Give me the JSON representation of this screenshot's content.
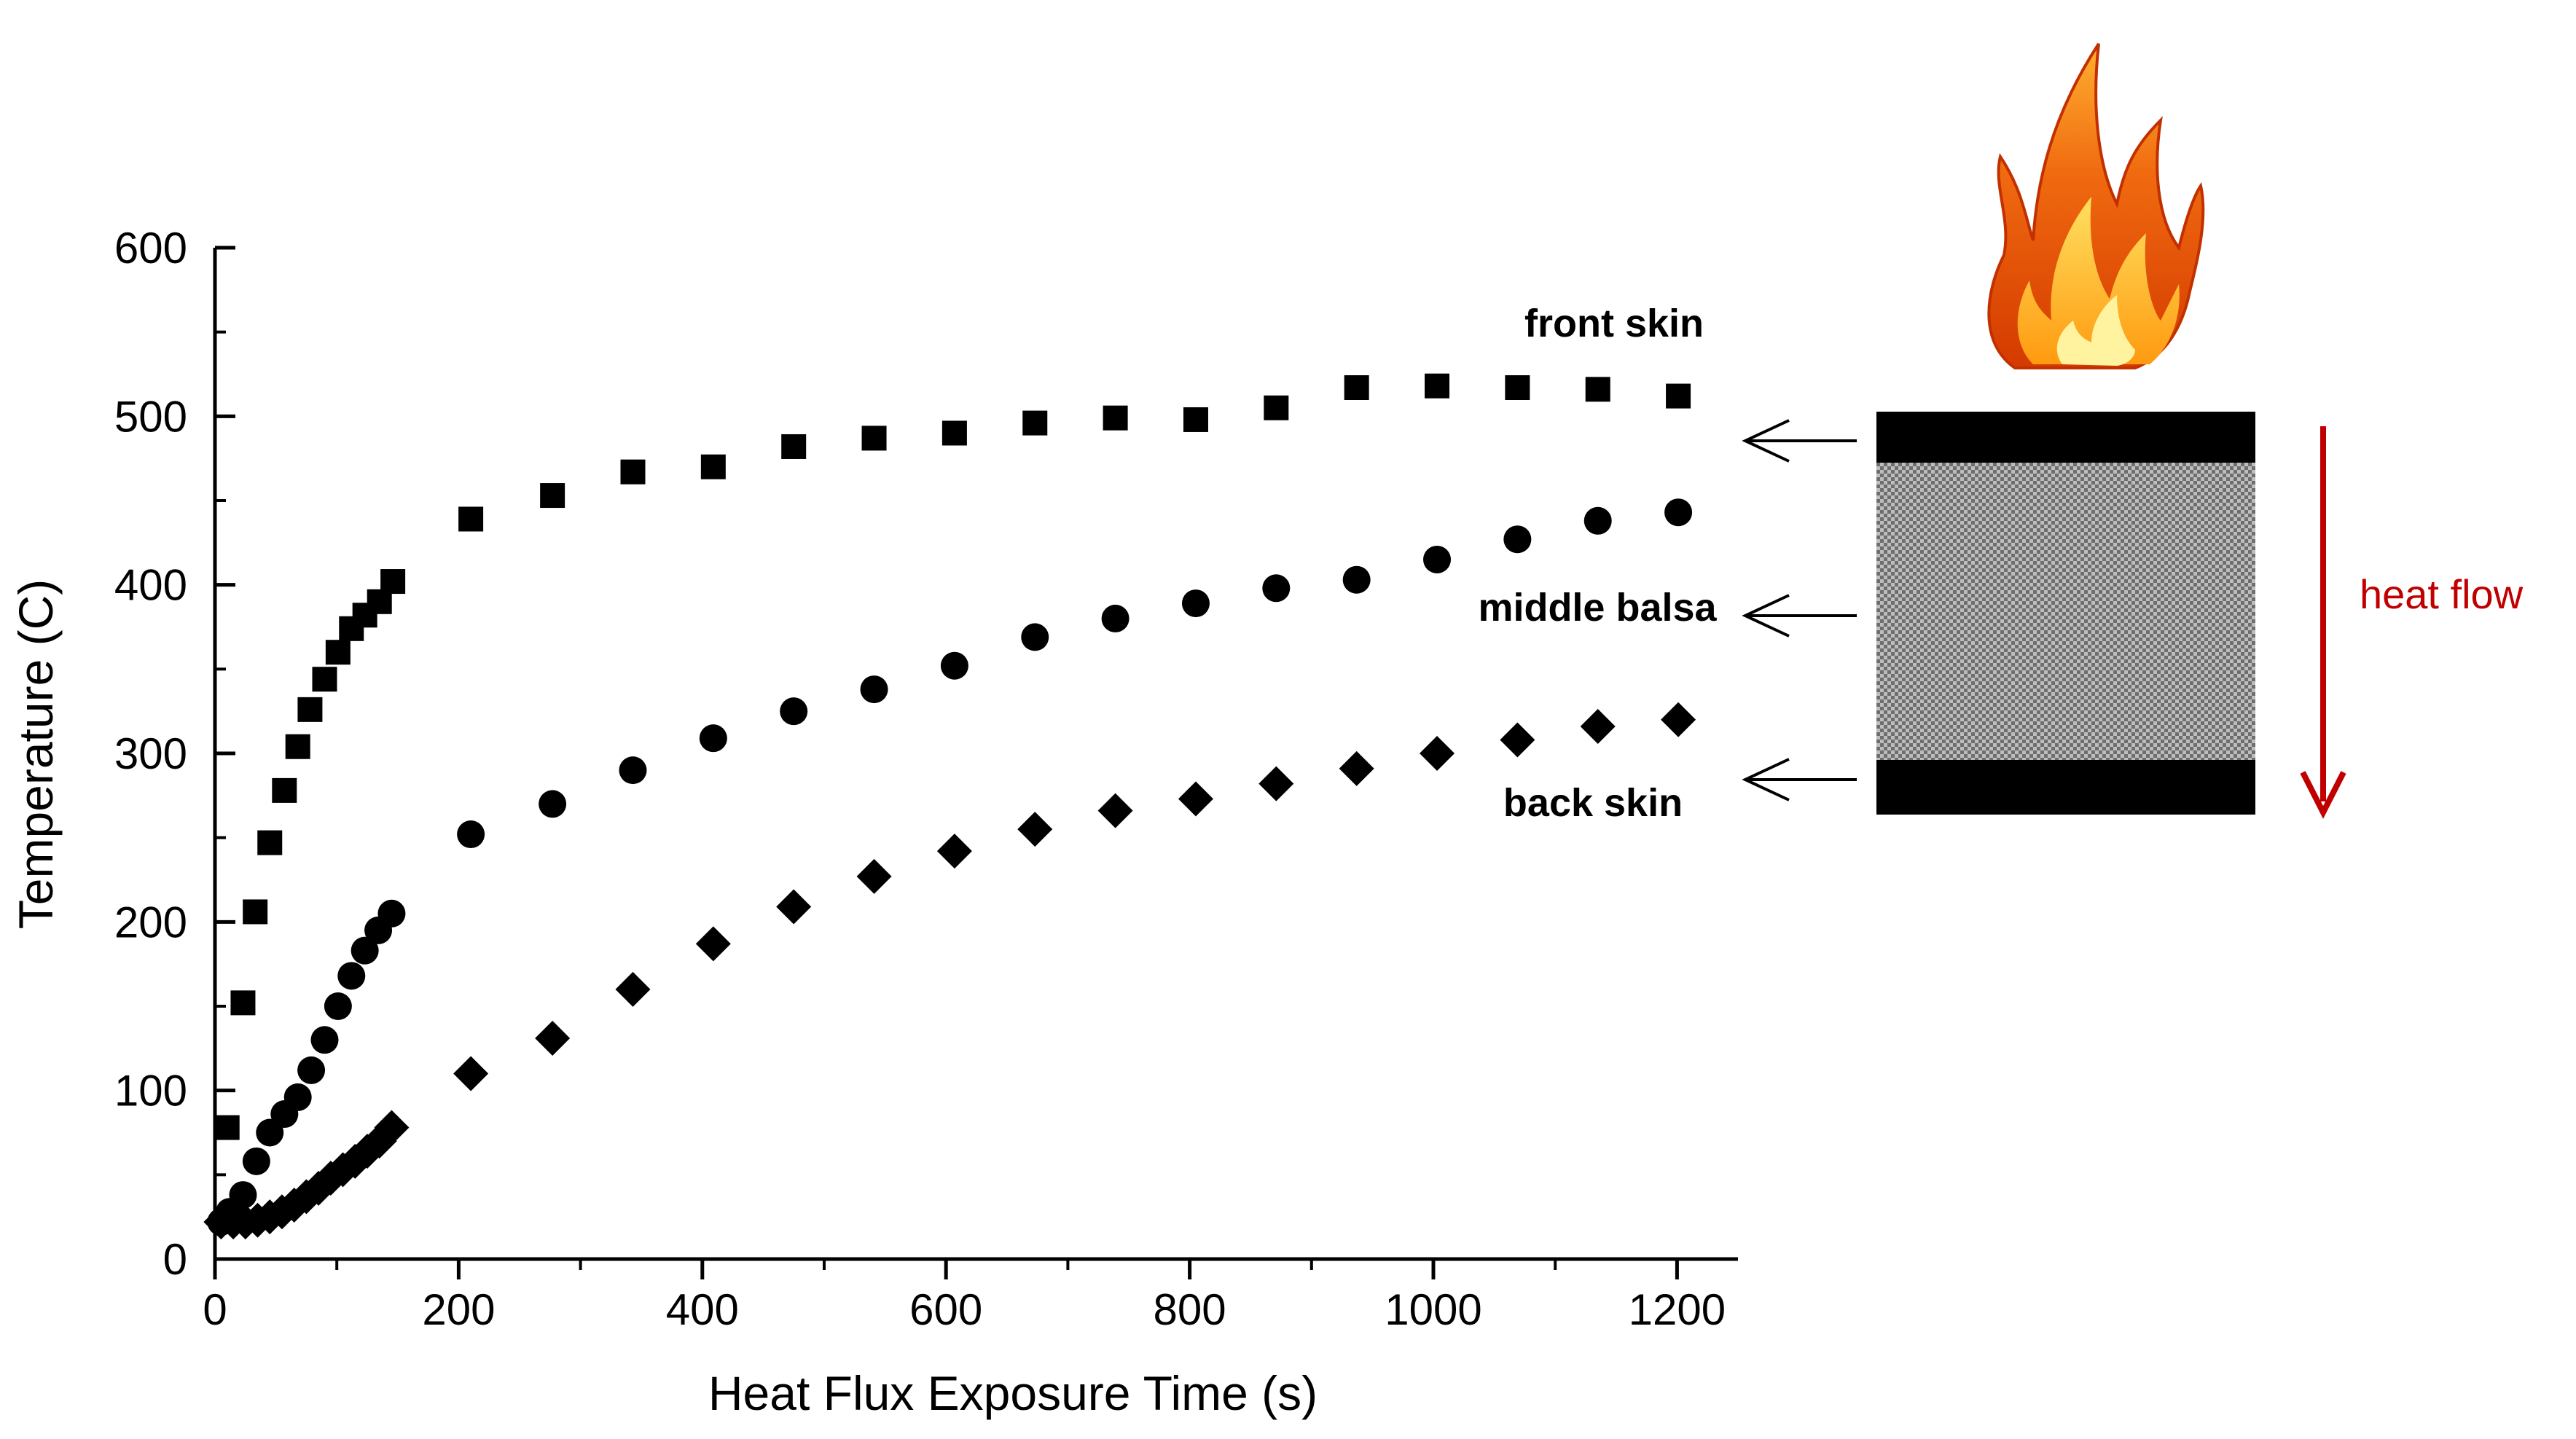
{
  "chart_data": {
    "type": "scatter",
    "title": "",
    "xlabel": "Heat Flux Exposure Time (s)",
    "ylabel": "Temperature (C)",
    "xlim": [
      0,
      1250
    ],
    "ylim": [
      0,
      600
    ],
    "xticks": [
      0,
      200,
      400,
      600,
      800,
      1000,
      1200
    ],
    "yticks": [
      0,
      100,
      200,
      300,
      400,
      500,
      600
    ],
    "grid": false,
    "legend": "none",
    "series": [
      {
        "name": "front skin",
        "marker": "square",
        "color": "#000000",
        "x": [
          10,
          23,
          33,
          45,
          57,
          68,
          78,
          90,
          101,
          112,
          123,
          135,
          146,
          210,
          277,
          343,
          409,
          475,
          541,
          607,
          673,
          739,
          805,
          871,
          937,
          1003,
          1069,
          1135,
          1201
        ],
        "y": [
          78,
          152,
          206,
          247,
          278,
          304,
          326,
          344,
          360,
          374,
          382,
          390,
          402,
          439,
          453,
          467,
          470,
          482,
          487,
          490,
          496,
          499,
          498,
          505,
          517,
          518,
          517,
          516,
          512
        ]
      },
      {
        "name": "middle balsa",
        "marker": "circle",
        "color": "#000000",
        "x": [
          5,
          12,
          23,
          34,
          45,
          57,
          68,
          79,
          90,
          101,
          112,
          123,
          134,
          145,
          210,
          277,
          343,
          409,
          475,
          541,
          607,
          673,
          739,
          805,
          871,
          937,
          1003,
          1069,
          1135,
          1201
        ],
        "y": [
          22,
          28,
          38,
          58,
          75,
          86,
          96,
          112,
          130,
          150,
          168,
          183,
          195,
          205,
          252,
          270,
          290,
          309,
          325,
          338,
          352,
          369,
          380,
          389,
          398,
          403,
          415,
          427,
          438,
          443
        ]
      },
      {
        "name": "back skin",
        "marker": "diamond",
        "color": "#000000",
        "x": [
          5,
          15,
          25,
          35,
          45,
          55,
          65,
          75,
          85,
          95,
          105,
          115,
          125,
          135,
          145,
          210,
          277,
          343,
          409,
          475,
          541,
          607,
          673,
          739,
          805,
          871,
          937,
          1003,
          1069,
          1135,
          1201
        ],
        "y": [
          22,
          22,
          22,
          23,
          25,
          28,
          32,
          37,
          42,
          48,
          53,
          58,
          64,
          70,
          78,
          110,
          131,
          160,
          187,
          209,
          227,
          242,
          255,
          266,
          273,
          282,
          291,
          300,
          308,
          316,
          320
        ]
      }
    ]
  },
  "diagram": {
    "annotations": {
      "front": "front skin",
      "middle": "middle balsa",
      "back": "back skin",
      "heat_flow": "heat flow"
    },
    "colors": {
      "heat_flow": "#c00000",
      "skin": "#000000",
      "core": "#9a9a9a"
    },
    "icons": [
      "flame-icon",
      "arrow-left-icon",
      "arrow-down-icon"
    ]
  }
}
